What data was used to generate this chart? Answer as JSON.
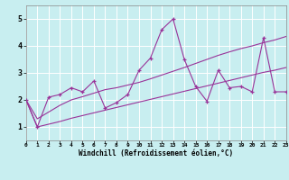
{
  "title": "",
  "xlabel": "Windchill (Refroidissement éolien,°C)",
  "bg_color": "#c8eef0",
  "line_color": "#993399",
  "grid_color": "#ffffff",
  "x_data": [
    0,
    1,
    2,
    3,
    4,
    5,
    6,
    7,
    8,
    9,
    10,
    11,
    12,
    13,
    14,
    15,
    16,
    17,
    18,
    19,
    20,
    21,
    22,
    23
  ],
  "y_main": [
    2.0,
    1.0,
    2.1,
    2.2,
    2.45,
    2.3,
    2.7,
    1.7,
    1.9,
    2.2,
    3.1,
    3.55,
    4.6,
    5.0,
    3.5,
    2.5,
    1.95,
    3.1,
    2.45,
    2.5,
    2.3,
    4.3,
    2.3,
    2.3
  ],
  "y_upper": [
    2.0,
    1.3,
    1.55,
    1.8,
    2.0,
    2.12,
    2.25,
    2.38,
    2.45,
    2.55,
    2.65,
    2.78,
    2.92,
    3.06,
    3.2,
    3.35,
    3.5,
    3.65,
    3.78,
    3.9,
    4.0,
    4.12,
    4.22,
    4.35
  ],
  "y_lower": [
    2.0,
    1.0,
    1.1,
    1.2,
    1.32,
    1.42,
    1.52,
    1.62,
    1.72,
    1.82,
    1.92,
    2.02,
    2.12,
    2.22,
    2.32,
    2.42,
    2.52,
    2.62,
    2.72,
    2.82,
    2.92,
    3.02,
    3.1,
    3.2
  ],
  "xlim": [
    0,
    23
  ],
  "ylim": [
    0.5,
    5.5
  ],
  "yticks": [
    1,
    2,
    3,
    4,
    5
  ],
  "xtick_labels": [
    "0",
    "1",
    "2",
    "3",
    "4",
    "5",
    "6",
    "7",
    "8",
    "9",
    "10",
    "11",
    "12",
    "13",
    "14",
    "15",
    "16",
    "17",
    "18",
    "19",
    "20",
    "21",
    "22",
    "23"
  ],
  "figsize": [
    3.2,
    2.0
  ],
  "dpi": 100
}
